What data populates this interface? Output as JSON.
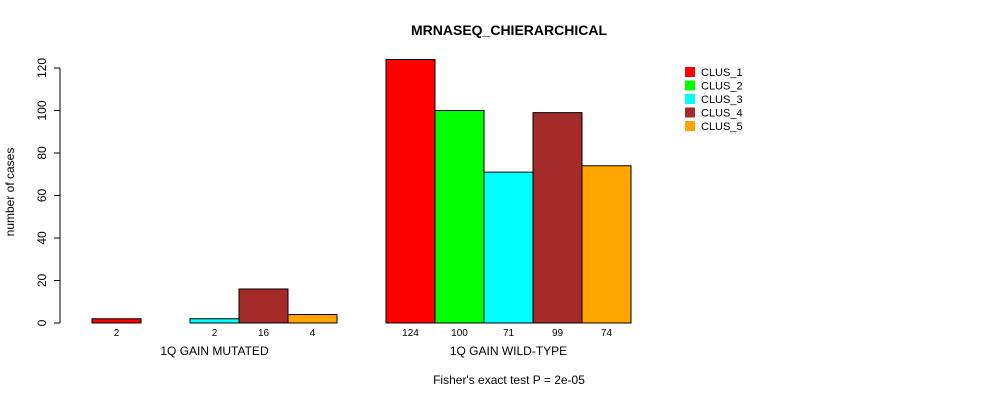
{
  "chart_data": {
    "type": "bar",
    "title": "MRNASEQ_CHIERARCHICAL",
    "ylabel": "number of cases",
    "xlabel": "",
    "ylim": [
      0,
      120
    ],
    "yticks": [
      0,
      20,
      40,
      60,
      80,
      100,
      120
    ],
    "grid": false,
    "legend_position": "top-right",
    "groups": [
      "1Q GAIN MUTATED",
      "1Q GAIN WILD-TYPE"
    ],
    "series": [
      {
        "name": "CLUS_1",
        "color": "#ff0000",
        "values": [
          2,
          124
        ],
        "labels": [
          "2",
          "124"
        ]
      },
      {
        "name": "CLUS_2",
        "color": "#00ff00",
        "values": [
          0,
          100
        ],
        "labels": [
          "",
          "100"
        ]
      },
      {
        "name": "CLUS_3",
        "color": "#00ffff",
        "values": [
          2,
          71
        ],
        "labels": [
          "2",
          "71"
        ]
      },
      {
        "name": "CLUS_4",
        "color": "#a52a2a",
        "values": [
          16,
          99
        ],
        "labels": [
          "16",
          "99"
        ]
      },
      {
        "name": "CLUS_5",
        "color": "#ffa500",
        "values": [
          4,
          74
        ],
        "labels": [
          "4",
          "74"
        ]
      }
    ],
    "footnote": "Fisher's exact test P = 2e-05"
  }
}
